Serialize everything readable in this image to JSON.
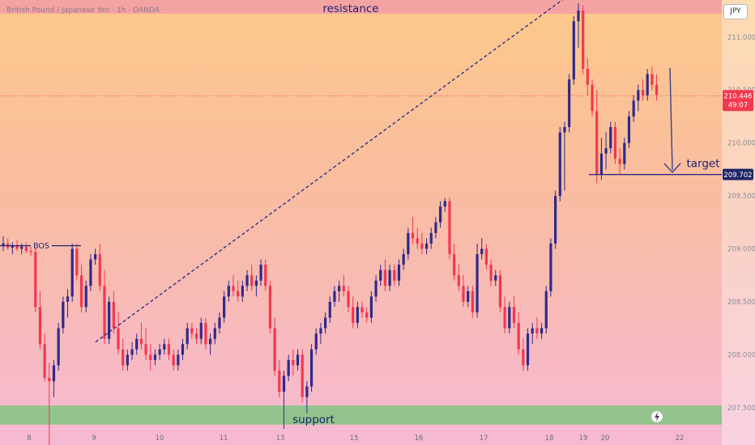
{
  "header": {
    "symbol_title": "British Pound / Japanese Yen · 1h · OANDA",
    "currency": "JPY"
  },
  "annotations": {
    "resistance": "resistance",
    "support": "support",
    "target": "target",
    "bos": "BOS"
  },
  "price_badge": {
    "price": "210.446",
    "countdown": "49:07"
  },
  "target_badge": "209.702",
  "icons": {
    "lightning": "lightning-icon"
  },
  "colors": {
    "up_candle": "#2e2a8a",
    "down_candle": "#f2384f",
    "resistance_zone": "#f4a3a3",
    "support_zone": "#92c48b",
    "annotation_text": "#1c1f6e"
  },
  "chart_data": {
    "type": "candlestick",
    "title": "",
    "xlabel": "",
    "ylabel": "",
    "ylim": [
      207.3,
      211.35
    ],
    "x_ticks": [
      "8",
      "9",
      "10",
      "11",
      "13",
      "15",
      "16",
      "17",
      "18",
      "19",
      "20",
      "22"
    ],
    "y_ticks": [
      "211.000",
      "210.500",
      "210.000",
      "209.500",
      "209.000",
      "208.500",
      "208.000",
      "207.500"
    ],
    "resistance_zone": [
      211.22,
      211.35
    ],
    "support_zone": [
      207.34,
      207.52
    ],
    "target_level": 209.702,
    "last_price": 210.446,
    "trendline": {
      "from_price": 208.12,
      "to_price": 211.72
    },
    "series": [
      {
        "values": [
          [
            209.03,
            209.12,
            208.98,
            209.05
          ],
          [
            209.05,
            209.1,
            208.99,
            209.01
          ],
          [
            209.01,
            209.06,
            208.95,
            209.03
          ],
          [
            209.03,
            209.08,
            208.98,
            209.0
          ],
          [
            209.0,
            209.05,
            208.95,
            209.02
          ],
          [
            209.02,
            209.06,
            208.96,
            208.98
          ],
          [
            208.98,
            209.02,
            208.93,
            208.97
          ],
          [
            208.97,
            209.01,
            208.4,
            208.45
          ],
          [
            208.45,
            208.6,
            208.05,
            208.1
          ],
          [
            208.1,
            208.2,
            207.75,
            207.78
          ],
          [
            207.78,
            207.92,
            207.1,
            207.75
          ],
          [
            207.75,
            207.95,
            207.6,
            207.9
          ],
          [
            207.9,
            208.3,
            207.85,
            208.25
          ],
          [
            208.25,
            208.55,
            208.2,
            208.5
          ],
          [
            208.5,
            208.62,
            208.35,
            208.55
          ],
          [
            208.55,
            209.05,
            208.5,
            209.0
          ],
          [
            209.0,
            209.05,
            208.7,
            208.75
          ],
          [
            208.75,
            208.85,
            208.4,
            208.45
          ],
          [
            208.45,
            208.7,
            208.4,
            208.65
          ],
          [
            208.65,
            208.95,
            208.6,
            208.9
          ],
          [
            208.9,
            209.0,
            208.85,
            208.95
          ],
          [
            208.95,
            209.05,
            208.6,
            208.65
          ],
          [
            208.65,
            208.8,
            208.1,
            208.15
          ],
          [
            208.15,
            208.55,
            208.1,
            208.5
          ],
          [
            208.5,
            208.6,
            208.2,
            208.25
          ],
          [
            208.25,
            208.4,
            208.0,
            208.05
          ],
          [
            208.05,
            208.15,
            207.85,
            207.9
          ],
          [
            207.9,
            208.05,
            207.85,
            208.0
          ],
          [
            208.0,
            208.12,
            207.95,
            208.05
          ],
          [
            208.05,
            208.2,
            208.0,
            208.15
          ],
          [
            208.15,
            208.3,
            208.05,
            208.1
          ],
          [
            208.1,
            208.25,
            207.95,
            208.0
          ],
          [
            208.0,
            208.1,
            207.85,
            207.95
          ],
          [
            207.95,
            208.05,
            207.9,
            208.0
          ],
          [
            208.0,
            208.1,
            207.95,
            208.05
          ],
          [
            208.05,
            208.15,
            208.0,
            208.1
          ],
          [
            208.1,
            208.15,
            207.95,
            208.0
          ],
          [
            208.0,
            208.05,
            207.85,
            207.9
          ],
          [
            207.9,
            208.05,
            207.85,
            208.0
          ],
          [
            208.0,
            208.15,
            207.95,
            208.1
          ],
          [
            208.1,
            208.3,
            208.05,
            208.25
          ],
          [
            208.25,
            208.3,
            208.15,
            208.2
          ],
          [
            208.2,
            208.25,
            208.1,
            208.15
          ],
          [
            208.15,
            208.35,
            208.1,
            208.3
          ],
          [
            208.3,
            208.35,
            208.05,
            208.1
          ],
          [
            208.1,
            208.2,
            208.0,
            208.15
          ],
          [
            208.15,
            208.3,
            208.1,
            208.25
          ],
          [
            208.25,
            208.4,
            208.2,
            208.35
          ],
          [
            208.35,
            208.6,
            208.3,
            208.55
          ],
          [
            208.55,
            208.7,
            208.5,
            208.65
          ],
          [
            208.65,
            208.75,
            208.55,
            208.6
          ],
          [
            208.6,
            208.7,
            208.5,
            208.55
          ],
          [
            208.55,
            208.7,
            208.5,
            208.65
          ],
          [
            208.65,
            208.8,
            208.6,
            208.75
          ],
          [
            208.75,
            208.85,
            208.6,
            208.65
          ],
          [
            208.65,
            208.75,
            208.55,
            208.7
          ],
          [
            208.7,
            208.9,
            208.65,
            208.85
          ],
          [
            208.85,
            208.9,
            208.6,
            208.65
          ],
          [
            208.65,
            208.7,
            208.2,
            208.25
          ],
          [
            208.25,
            208.35,
            207.8,
            207.85
          ],
          [
            207.85,
            207.95,
            207.6,
            207.65
          ],
          [
            207.65,
            207.85,
            207.3,
            207.8
          ],
          [
            207.8,
            208.0,
            207.75,
            207.95
          ],
          [
            207.95,
            208.05,
            207.8,
            207.9
          ],
          [
            207.9,
            208.05,
            207.85,
            208.0
          ],
          [
            208.0,
            208.05,
            207.55,
            207.6
          ],
          [
            207.6,
            207.75,
            207.45,
            207.7
          ],
          [
            207.7,
            208.1,
            207.65,
            208.05
          ],
          [
            208.05,
            208.25,
            208.0,
            208.2
          ],
          [
            208.2,
            208.3,
            208.1,
            208.25
          ],
          [
            208.25,
            208.4,
            208.2,
            208.35
          ],
          [
            208.35,
            208.55,
            208.3,
            208.5
          ],
          [
            208.5,
            208.65,
            208.45,
            208.6
          ],
          [
            208.6,
            208.7,
            208.5,
            208.65
          ],
          [
            208.65,
            208.75,
            208.55,
            208.6
          ],
          [
            208.6,
            208.65,
            208.4,
            208.45
          ],
          [
            208.45,
            208.55,
            208.25,
            208.3
          ],
          [
            208.3,
            208.5,
            208.25,
            208.45
          ],
          [
            208.45,
            208.5,
            208.35,
            208.4
          ],
          [
            208.4,
            208.45,
            208.3,
            208.35
          ],
          [
            208.35,
            208.6,
            208.3,
            208.55
          ],
          [
            208.55,
            208.75,
            208.5,
            208.7
          ],
          [
            208.7,
            208.85,
            208.65,
            208.8
          ],
          [
            208.8,
            208.9,
            208.6,
            208.65
          ],
          [
            208.65,
            208.85,
            208.6,
            208.8
          ],
          [
            208.8,
            208.85,
            208.65,
            208.7
          ],
          [
            208.7,
            208.9,
            208.65,
            208.85
          ],
          [
            208.85,
            209.0,
            208.8,
            208.95
          ],
          [
            208.95,
            209.2,
            208.9,
            209.15
          ],
          [
            209.15,
            209.3,
            209.05,
            209.1
          ],
          [
            209.1,
            209.2,
            209.0,
            209.05
          ],
          [
            209.05,
            209.15,
            208.95,
            209.0
          ],
          [
            209.0,
            209.1,
            208.95,
            209.05
          ],
          [
            209.05,
            209.2,
            209.0,
            209.15
          ],
          [
            209.15,
            209.3,
            209.1,
            209.25
          ],
          [
            209.25,
            209.45,
            209.2,
            209.4
          ],
          [
            209.4,
            209.48,
            209.35,
            209.45
          ],
          [
            209.45,
            209.48,
            208.9,
            208.95
          ],
          [
            208.95,
            209.05,
            208.7,
            208.75
          ],
          [
            208.75,
            208.85,
            208.6,
            208.65
          ],
          [
            208.65,
            208.75,
            208.45,
            208.5
          ],
          [
            208.5,
            208.65,
            208.45,
            208.6
          ],
          [
            208.6,
            208.65,
            208.35,
            208.4
          ],
          [
            208.4,
            209.05,
            208.35,
            208.95
          ],
          [
            208.95,
            209.1,
            208.9,
            209.0
          ],
          [
            209.0,
            209.05,
            208.8,
            208.85
          ],
          [
            208.85,
            208.9,
            208.65,
            208.7
          ],
          [
            208.7,
            208.8,
            208.65,
            208.75
          ],
          [
            208.75,
            208.8,
            208.4,
            208.45
          ],
          [
            208.45,
            208.55,
            208.2,
            208.25
          ],
          [
            208.25,
            208.5,
            208.2,
            208.45
          ],
          [
            208.45,
            208.55,
            208.25,
            208.3
          ],
          [
            208.3,
            208.4,
            208.0,
            208.05
          ],
          [
            208.05,
            208.15,
            207.85,
            207.9
          ],
          [
            207.9,
            208.25,
            207.85,
            208.2
          ],
          [
            208.2,
            208.3,
            208.1,
            208.25
          ],
          [
            208.25,
            208.35,
            208.15,
            208.2
          ],
          [
            208.2,
            208.3,
            208.15,
            208.25
          ],
          [
            208.25,
            208.65,
            208.2,
            208.6
          ],
          [
            208.6,
            209.1,
            208.55,
            209.05
          ],
          [
            209.05,
            209.55,
            209.0,
            209.5
          ],
          [
            209.5,
            210.15,
            209.45,
            210.1
          ],
          [
            210.1,
            210.2,
            209.55,
            210.15
          ],
          [
            210.15,
            210.65,
            210.1,
            210.6
          ],
          [
            210.6,
            211.2,
            210.55,
            211.15
          ],
          [
            211.15,
            211.32,
            210.9,
            211.25
          ],
          [
            211.25,
            211.3,
            210.65,
            210.7
          ],
          [
            210.7,
            210.8,
            210.45,
            210.55
          ],
          [
            210.55,
            210.6,
            210.25,
            210.3
          ],
          [
            210.3,
            210.5,
            209.62,
            209.7
          ],
          [
            209.7,
            210.05,
            209.65,
            209.9
          ],
          [
            209.9,
            210.1,
            209.75,
            209.95
          ],
          [
            209.95,
            210.2,
            209.9,
            210.15
          ],
          [
            210.15,
            210.2,
            209.8,
            209.85
          ],
          [
            209.85,
            209.95,
            209.7,
            209.8
          ],
          [
            209.8,
            210.05,
            209.75,
            210.0
          ],
          [
            210.0,
            210.3,
            209.95,
            210.25
          ],
          [
            210.25,
            210.45,
            210.2,
            210.4
          ],
          [
            210.4,
            210.55,
            210.3,
            210.5
          ],
          [
            210.5,
            210.6,
            210.4,
            210.45
          ],
          [
            210.45,
            210.7,
            210.4,
            210.65
          ],
          [
            210.65,
            210.72,
            210.5,
            210.55
          ],
          [
            210.55,
            210.65,
            210.4,
            210.45
          ]
        ]
      }
    ]
  }
}
